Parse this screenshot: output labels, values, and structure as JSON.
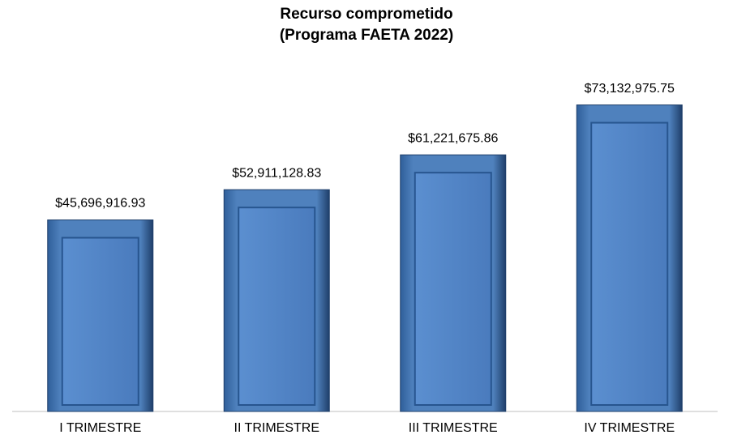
{
  "chart_data": {
    "type": "bar",
    "title": "Recurso comprometido",
    "subtitle": "(Programa FAETA 2022)",
    "categories": [
      "I TRIMESTRE",
      "II TRIMESTRE",
      "III TRIMESTRE",
      "IV TRIMESTRE"
    ],
    "values": [
      45696916.93,
      52911128.83,
      61221675.86,
      73132975.75
    ],
    "value_labels": [
      "$45,696,916.93",
      "$52,911,128.83",
      "$61,221,675.86",
      "$73,132,975.75"
    ],
    "color": "#4f81bd",
    "ylim": [
      0,
      80000000
    ]
  }
}
